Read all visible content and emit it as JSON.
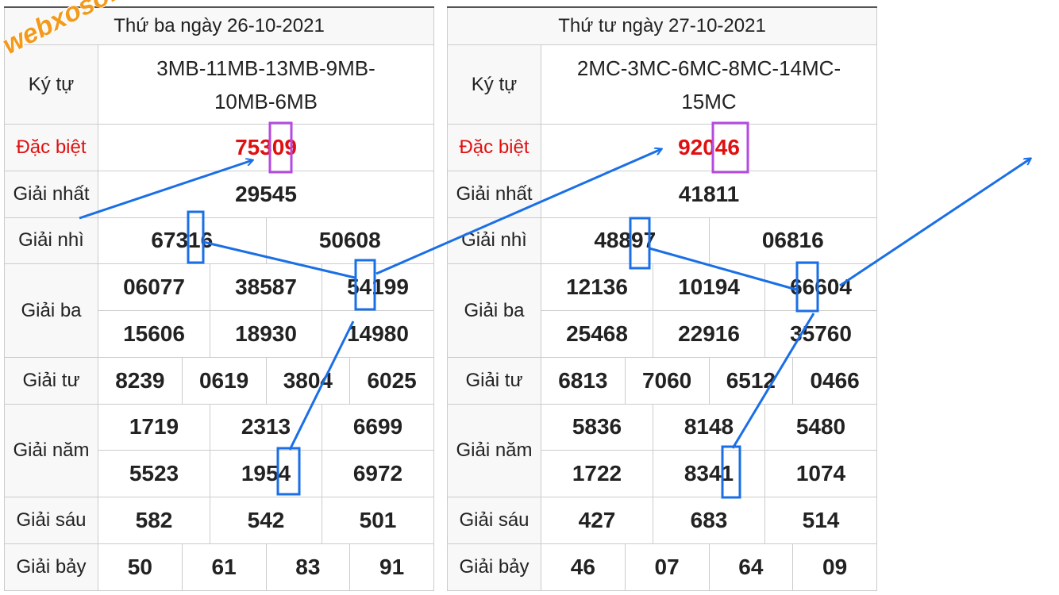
{
  "watermark": "webxoso.net",
  "tables": [
    {
      "header": "Thứ ba ngày 26-10-2021",
      "rows": [
        {
          "label": "Ký tự",
          "lines": [
            [
              "3MB-11MB-13MB-9MB-10MB-6MB"
            ]
          ]
        },
        {
          "label": "Đặc biệt",
          "lines": [
            [
              "75309"
            ]
          ]
        },
        {
          "label": "Giải nhất",
          "lines": [
            [
              "29545"
            ]
          ]
        },
        {
          "label": "Giải nhì",
          "lines": [
            [
              "67316",
              "50608"
            ]
          ]
        },
        {
          "label": "Giải ba",
          "lines": [
            [
              "06077",
              "38587",
              "54199"
            ],
            [
              "15606",
              "18930",
              "14980"
            ]
          ]
        },
        {
          "label": "Giải tư",
          "lines": [
            [
              "8239",
              "0619",
              "3804",
              "6025"
            ]
          ]
        },
        {
          "label": "Giải năm",
          "lines": [
            [
              "1719",
              "2313",
              "6699"
            ],
            [
              "5523",
              "1954",
              "6972"
            ]
          ]
        },
        {
          "label": "Giải sáu",
          "lines": [
            [
              "582",
              "542",
              "501"
            ]
          ]
        },
        {
          "label": "Giải bảy",
          "lines": [
            [
              "50",
              "61",
              "83",
              "91"
            ]
          ]
        }
      ]
    },
    {
      "header": "Thứ tư ngày 27-10-2021",
      "rows": [
        {
          "label": "Ký tự",
          "lines": [
            [
              "2MC-3MC-6MC-8MC-14MC-15MC"
            ]
          ]
        },
        {
          "label": "Đặc biệt",
          "lines": [
            [
              "92046"
            ]
          ]
        },
        {
          "label": "Giải nhất",
          "lines": [
            [
              "41811"
            ]
          ]
        },
        {
          "label": "Giải nhì",
          "lines": [
            [
              "48897",
              "06816"
            ]
          ]
        },
        {
          "label": "Giải ba",
          "lines": [
            [
              "12136",
              "10194",
              "66604"
            ],
            [
              "25468",
              "22916",
              "35760"
            ]
          ]
        },
        {
          "label": "Giải tư",
          "lines": [
            [
              "6813",
              "7060",
              "6512",
              "0466"
            ]
          ]
        },
        {
          "label": "Giải năm",
          "lines": [
            [
              "5836",
              "8148",
              "5480"
            ],
            [
              "1722",
              "8341",
              "1074"
            ]
          ]
        },
        {
          "label": "Giải sáu",
          "lines": [
            [
              "427",
              "683",
              "514"
            ]
          ]
        },
        {
          "label": "Giải bảy",
          "lines": [
            [
              "46",
              "07",
              "64",
              "09"
            ]
          ]
        }
      ]
    }
  ]
}
